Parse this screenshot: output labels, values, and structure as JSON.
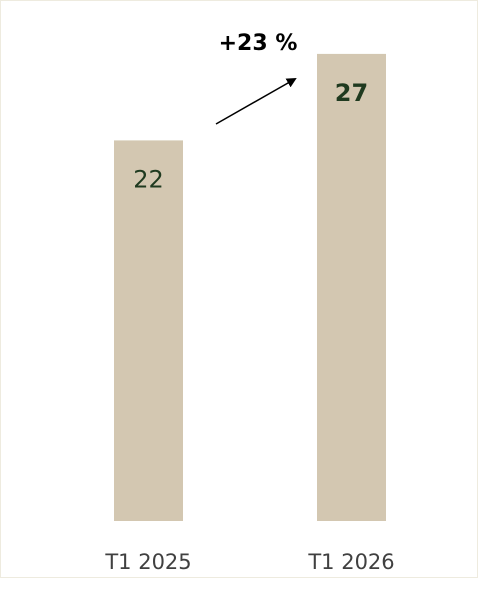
{
  "chart_data": {
    "type": "bar",
    "categories": [
      "T1 2025",
      "T1 2026"
    ],
    "values": [
      22,
      27
    ],
    "color": "#d3c7b1",
    "ylim": [
      0,
      30
    ],
    "annotations": [
      "+23 %"
    ]
  }
}
